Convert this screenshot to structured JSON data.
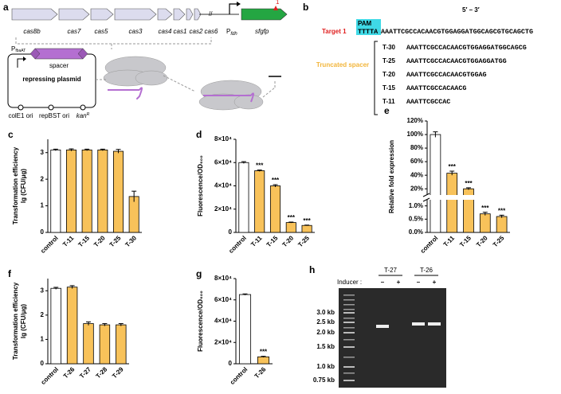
{
  "diagram_a": {
    "panel": "a",
    "genes": [
      "cas8b",
      "cas7",
      "cas5",
      "cas3",
      "cas4",
      "cas1",
      "cas2",
      "cas6"
    ],
    "promoter": "P",
    "promoter_sub": "fdh",
    "reporter": "sfgfp",
    "site": "1",
    "plasmid": {
      "promoter": "P",
      "promoter_sub": "fbaAT",
      "spacer": "spacer",
      "title": "repressing plasmid",
      "origins": [
        "colE1 ori",
        "repBST ori"
      ],
      "marker": "kan",
      "marker_sup": "R"
    }
  },
  "sequence_b": {
    "panel": "b",
    "direction": "5′ – 3′",
    "pam": "PAM",
    "pam_seq": "TTTTA",
    "target": "Target 1",
    "target_seq": "AAATTCGCCACAACGTGGAGGATGGCAGCGTGCAGCTG",
    "group": "Truncated spacer",
    "spacers": [
      {
        "name": "T-30",
        "seq": "AAATTCGCCACAACGTGGAGGATGGCAGCG"
      },
      {
        "name": "T-25",
        "seq": "AAATTCGCCACAACGTGGAGGATGG"
      },
      {
        "name": "T-20",
        "seq": "AAATTCGCCACAACGTGGAG"
      },
      {
        "name": "T-15",
        "seq": "AAATTCGCCACAACG"
      },
      {
        "name": "T-11",
        "seq": "AAATTCGCCAC"
      }
    ]
  },
  "chart_data": [
    {
      "type": "bar",
      "panel": "c",
      "ylabel": [
        "Transformation efficiency",
        "lg (CFU/μg)"
      ],
      "categories": [
        "control",
        "T-11",
        "T-15",
        "T-20",
        "T-25",
        "T-30"
      ],
      "values": [
        3.1,
        3.1,
        3.1,
        3.1,
        3.05,
        1.35
      ],
      "errors": [
        0.03,
        0.04,
        0.03,
        0.03,
        0.07,
        0.2
      ],
      "colors": [
        "#ffffff",
        "#f8c25a",
        "#f8c25a",
        "#f8c25a",
        "#f8c25a",
        "#f8c25a"
      ],
      "ylim": [
        0,
        3.5
      ],
      "yticks": [
        0,
        1,
        2,
        3
      ]
    },
    {
      "type": "bar",
      "panel": "d",
      "ylabel": [
        "Fluorescence/OD₆₀₀"
      ],
      "categories": [
        "control",
        "T-11",
        "T-15",
        "T-20",
        "T-25"
      ],
      "values": [
        60000,
        53000,
        40000,
        8500,
        6000
      ],
      "errors": [
        800,
        600,
        1000,
        400,
        300
      ],
      "annotations": [
        null,
        "***",
        "***",
        "***",
        "***"
      ],
      "colors": [
        "#ffffff",
        "#f8c25a",
        "#f8c25a",
        "#f8c25a",
        "#f8c25a"
      ],
      "ylim": [
        0,
        80000
      ],
      "yticks": [
        0,
        {
          "value": 20000,
          "label": "2×10⁴"
        },
        {
          "value": 40000,
          "label": "4×10⁴"
        },
        {
          "value": 60000,
          "label": "6×10⁴"
        },
        {
          "value": 80000,
          "label": "8×10⁴"
        }
      ]
    },
    {
      "type": "bar",
      "panel": "e",
      "ylabel": [
        "Relative fold  expression"
      ],
      "categories": [
        "control",
        "T-11",
        "T-15",
        "T-20",
        "T-25"
      ],
      "values": [
        100,
        43,
        20,
        0.7,
        0.6
      ],
      "errors": [
        4,
        3,
        1.5,
        0.06,
        0.05
      ],
      "annotations": [
        null,
        "***",
        "***",
        "***",
        "***"
      ],
      "colors": [
        "#ffffff",
        "#f8c25a",
        "#f8c25a",
        "#f8c25a",
        "#f8c25a"
      ],
      "ylim": [
        0,
        120
      ],
      "ybreak": [
        1.2,
        12
      ],
      "yticks": [
        {
          "value": 0,
          "label": "0.0%"
        },
        {
          "value": 0.5,
          "label": "0.5%"
        },
        {
          "value": 1,
          "label": "1.0%"
        },
        {
          "value": 20,
          "label": "20%"
        },
        {
          "value": 40,
          "label": "40%"
        },
        {
          "value": 60,
          "label": "60%"
        },
        {
          "value": 80,
          "label": "80%"
        },
        {
          "value": 100,
          "label": "100%"
        },
        {
          "value": 120,
          "label": "120%"
        }
      ]
    },
    {
      "type": "bar",
      "panel": "f",
      "ylabel": [
        "Transformation efficiency",
        "lg (CFU/μg)"
      ],
      "categories": [
        "control",
        "T-26",
        "T-27",
        "T-28",
        "T-29"
      ],
      "values": [
        3.1,
        3.15,
        1.65,
        1.6,
        1.6
      ],
      "errors": [
        0.04,
        0.06,
        0.07,
        0.05,
        0.05
      ],
      "colors": [
        "#ffffff",
        "#f8c25a",
        "#f8c25a",
        "#f8c25a",
        "#f8c25a"
      ],
      "ylim": [
        0,
        3.5
      ],
      "yticks": [
        0,
        1,
        2,
        3
      ]
    },
    {
      "type": "bar",
      "panel": "g",
      "ylabel": [
        "Fluorescence/OD₆₀₀"
      ],
      "categories": [
        "control",
        "T-26"
      ],
      "values": [
        65000,
        6500
      ],
      "errors": [
        600,
        500
      ],
      "annotations": [
        null,
        "***"
      ],
      "colors": [
        "#ffffff",
        "#f8c25a"
      ],
      "ylim": [
        0,
        80000
      ],
      "yticks": [
        0,
        {
          "value": 20000,
          "label": "2×10⁴"
        },
        {
          "value": 40000,
          "label": "4×10⁴"
        },
        {
          "value": 60000,
          "label": "6×10⁴"
        },
        {
          "value": 80000,
          "label": "8×10⁴"
        }
      ]
    }
  ],
  "gel_h": {
    "panel": "h",
    "inducer_label": "Inducer :",
    "samples": [
      "T-27",
      "T-26"
    ],
    "inducer": [
      "–",
      "+",
      "–",
      "+"
    ],
    "ladder": [
      "3.0 kb",
      "2.5 kb",
      "2.0 kb",
      "1.5 kb",
      "1.0 kb",
      "0.75 kb"
    ]
  }
}
